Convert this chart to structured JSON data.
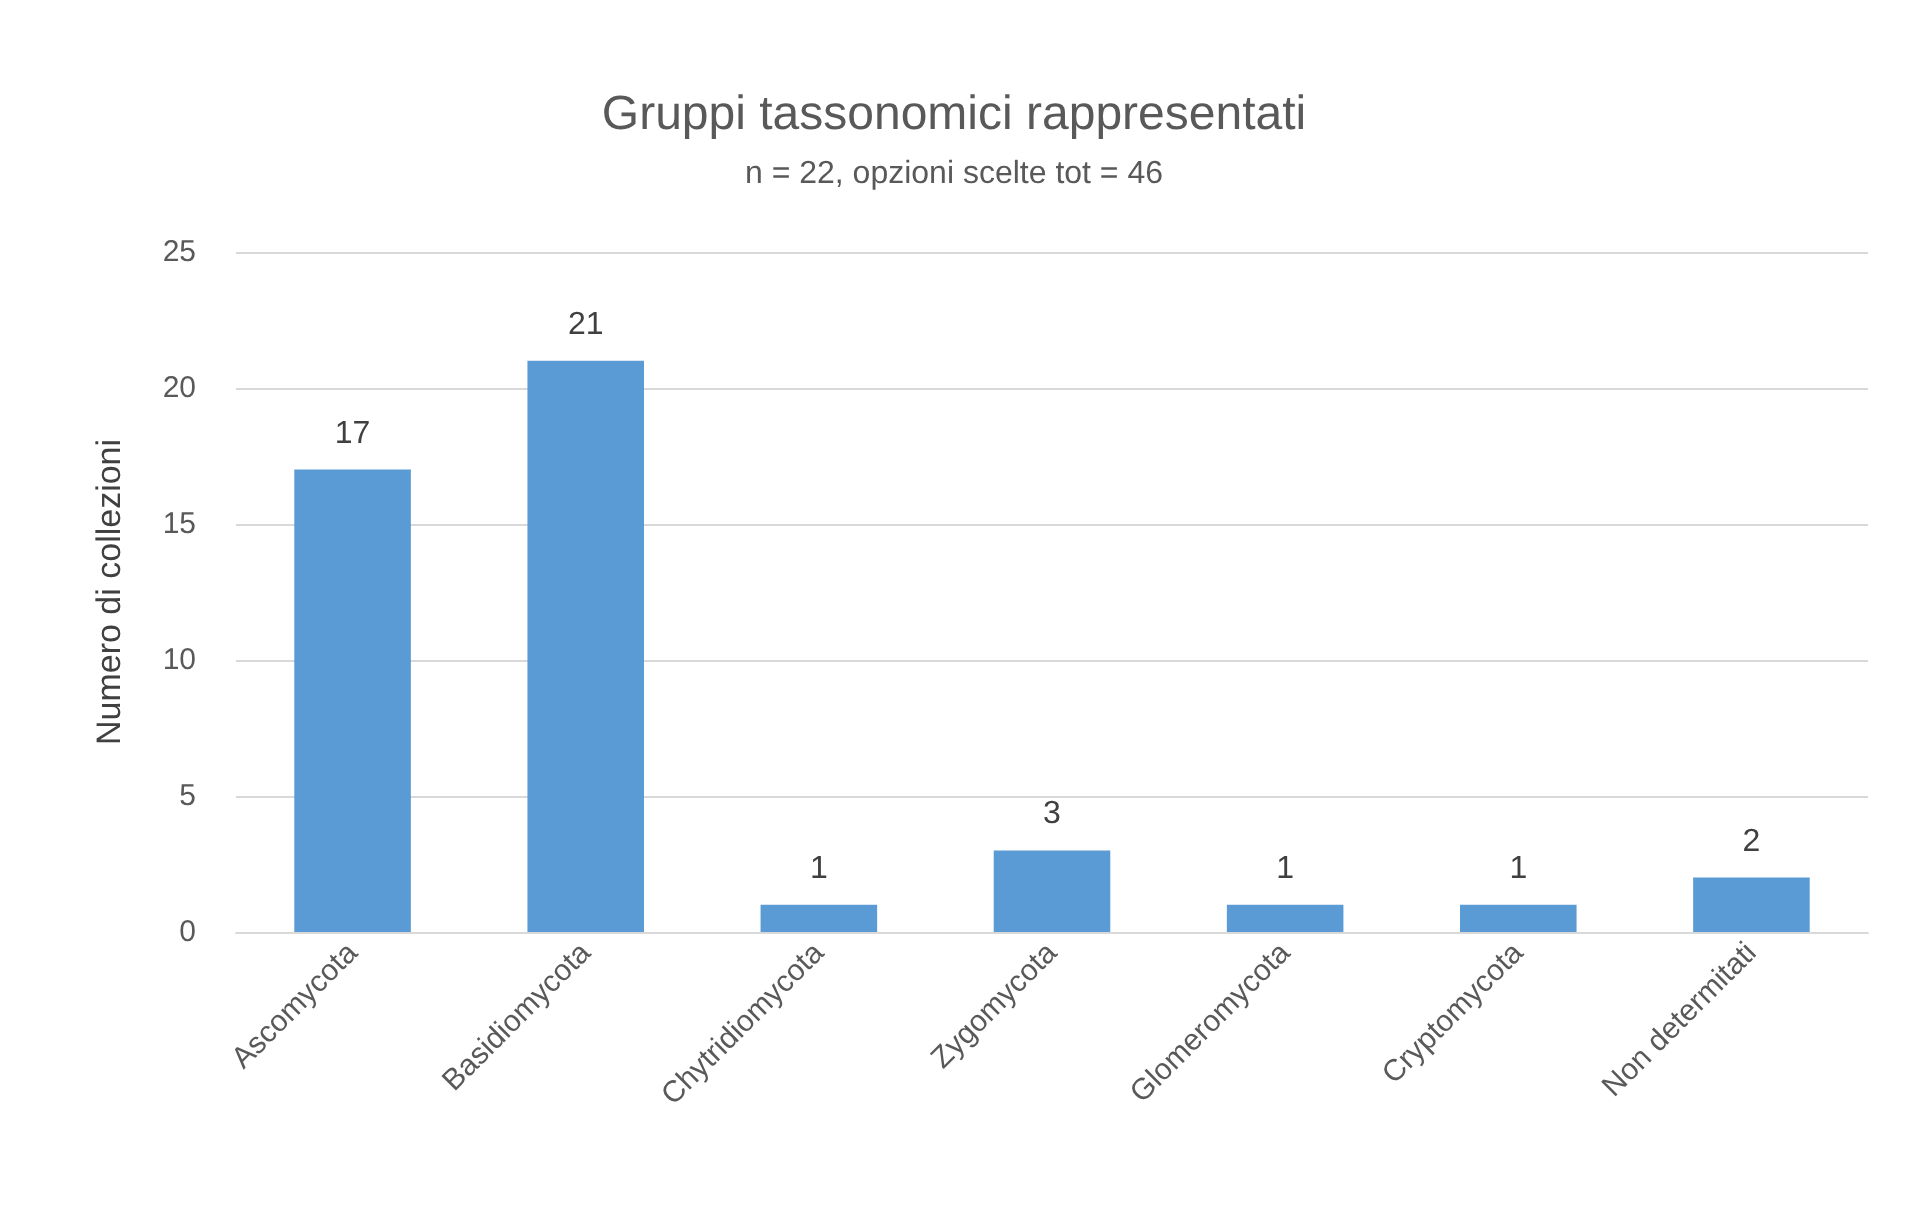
{
  "chart_data": {
    "type": "bar",
    "title": "Gruppi tassonomici rappresentati",
    "subtitle": "n = 22, opzioni scelte tot = 46",
    "ylabel": "Numero di collezioni",
    "categories": [
      "Ascomycota",
      "Basidiomycota",
      "Chytridiomycota",
      "Zygomycota",
      "Glomeromycota",
      "Cryptomycota",
      "Non determitati"
    ],
    "values": [
      17,
      21,
      1,
      3,
      1,
      1,
      2
    ],
    "color": "#5b9bd5",
    "ylim": [
      0,
      25
    ],
    "yticks": [
      0,
      5,
      10,
      15,
      20,
      25
    ],
    "grid": "y",
    "data_labels": true
  }
}
